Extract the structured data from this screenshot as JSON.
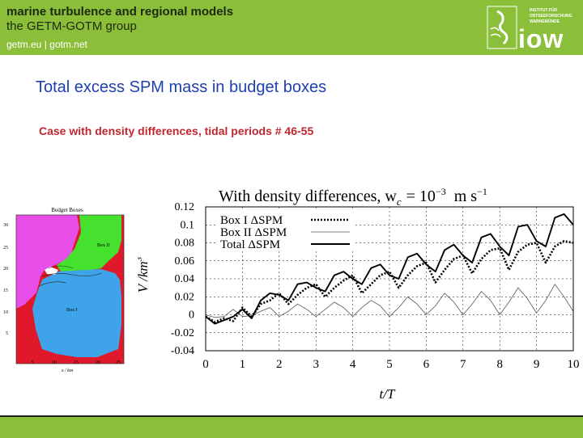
{
  "header": {
    "line1": "marine turbulence and regional models",
    "line2": "the GETM-GOTM group",
    "links": "getm.eu  |  gotm.net",
    "institute_lines": [
      "INSTITUT FÜR",
      "OSTSEEFORSCHUNG",
      "WARNEMÜNDE"
    ],
    "logo_text": "iow"
  },
  "slide": {
    "title": "Total excess SPM mass in budget boxes",
    "subtitle": "Case with density differences, tidal periods # 46-55"
  },
  "map": {
    "title": "Budget Boxes",
    "box_labels": [
      "Box II",
      "Box I"
    ],
    "xlabel": "x / km",
    "x_ticks": [
      "5",
      "10",
      "15",
      "20",
      "25"
    ],
    "y_ticks": [
      "30",
      "25",
      "20",
      "15",
      "10",
      "5"
    ],
    "colors": {
      "land": "#e0192a",
      "box1": "#3ea3e8",
      "box2": "#46e02e",
      "west": "#e84ee8"
    }
  },
  "chart_data": {
    "type": "line",
    "title_text": "With  density  differences,  w",
    "title_sub": "c",
    "title_rhs": "= 10",
    "title_exp": "−3",
    "title_unit": "m s",
    "title_unit_exp": "−1",
    "xlabel": "t/T",
    "ylabel": "V /km",
    "ylabel_exp": "3",
    "xlim": [
      0,
      10
    ],
    "ylim": [
      -0.04,
      0.12
    ],
    "x_ticks": [
      0,
      1,
      2,
      3,
      4,
      5,
      6,
      7,
      8,
      9,
      10
    ],
    "y_ticks": [
      -0.04,
      -0.02,
      0,
      0.02,
      0.04,
      0.06,
      0.08,
      0.1,
      0.12
    ],
    "y_tick_labels": [
      "-0.04",
      "-0.02",
      "0",
      "0.02",
      "0.04",
      "0.06",
      "0.08",
      "0.1",
      "0.12"
    ],
    "legend_position": "top-left",
    "series": [
      {
        "name": "Box I  ΔSPM",
        "style": "dotted",
        "x": [
          0,
          0.25,
          0.5,
          0.75,
          1,
          1.25,
          1.5,
          1.75,
          2,
          2.25,
          2.5,
          2.75,
          3,
          3.25,
          3.5,
          3.75,
          4,
          4.25,
          4.5,
          4.75,
          5,
          5.25,
          5.5,
          5.75,
          6,
          6.25,
          6.5,
          6.75,
          7,
          7.25,
          7.5,
          7.75,
          8,
          8.25,
          8.5,
          8.75,
          9,
          9.25,
          9.5,
          9.75,
          10
        ],
        "values": [
          -0.002,
          -0.008,
          -0.004,
          -0.007,
          0.008,
          -0.002,
          0.012,
          0.016,
          0.024,
          0.012,
          0.022,
          0.03,
          0.034,
          0.02,
          0.03,
          0.038,
          0.044,
          0.024,
          0.034,
          0.044,
          0.048,
          0.03,
          0.044,
          0.054,
          0.058,
          0.036,
          0.05,
          0.062,
          0.066,
          0.046,
          0.062,
          0.072,
          0.074,
          0.05,
          0.07,
          0.078,
          0.08,
          0.058,
          0.076,
          0.082,
          0.08
        ]
      },
      {
        "name": "Box II  ΔSPM",
        "style": "thin",
        "x": [
          0,
          0.25,
          0.5,
          0.75,
          1,
          1.25,
          1.5,
          1.75,
          2,
          2.25,
          2.5,
          2.75,
          3,
          3.25,
          3.5,
          3.75,
          4,
          4.25,
          4.5,
          4.75,
          5,
          5.25,
          5.5,
          5.75,
          6,
          6.25,
          6.5,
          6.75,
          7,
          7.25,
          7.5,
          7.75,
          8,
          8.25,
          8.5,
          8.75,
          9,
          9.25,
          9.5,
          9.75,
          10
        ],
        "values": [
          0.0,
          -0.003,
          -0.002,
          0.006,
          -0.002,
          -0.001,
          0.004,
          0.008,
          -0.002,
          0.004,
          0.012,
          0.006,
          -0.002,
          0.006,
          0.014,
          0.008,
          -0.002,
          0.008,
          0.016,
          0.01,
          -0.002,
          0.008,
          0.02,
          0.012,
          0.0,
          0.01,
          0.024,
          0.014,
          0.0,
          0.012,
          0.026,
          0.016,
          0.0,
          0.014,
          0.03,
          0.018,
          0.002,
          0.016,
          0.034,
          0.02,
          0.004
        ]
      },
      {
        "name": "Total  ΔSPM",
        "style": "solid",
        "x": [
          0,
          0.25,
          0.5,
          0.75,
          1,
          1.25,
          1.5,
          1.75,
          2,
          2.25,
          2.5,
          2.75,
          3,
          3.25,
          3.5,
          3.75,
          4,
          4.25,
          4.5,
          4.75,
          5,
          5.25,
          5.5,
          5.75,
          6,
          6.25,
          6.5,
          6.75,
          7,
          7.25,
          7.5,
          7.75,
          8,
          8.25,
          8.5,
          8.75,
          9,
          9.25,
          9.5,
          9.75,
          10
        ],
        "values": [
          -0.002,
          -0.01,
          -0.006,
          -0.002,
          0.006,
          -0.004,
          0.016,
          0.024,
          0.022,
          0.016,
          0.034,
          0.036,
          0.03,
          0.026,
          0.044,
          0.048,
          0.04,
          0.034,
          0.052,
          0.056,
          0.044,
          0.04,
          0.064,
          0.068,
          0.056,
          0.048,
          0.072,
          0.078,
          0.066,
          0.058,
          0.086,
          0.09,
          0.076,
          0.066,
          0.098,
          0.1,
          0.082,
          0.076,
          0.108,
          0.112,
          0.1
        ]
      }
    ]
  }
}
